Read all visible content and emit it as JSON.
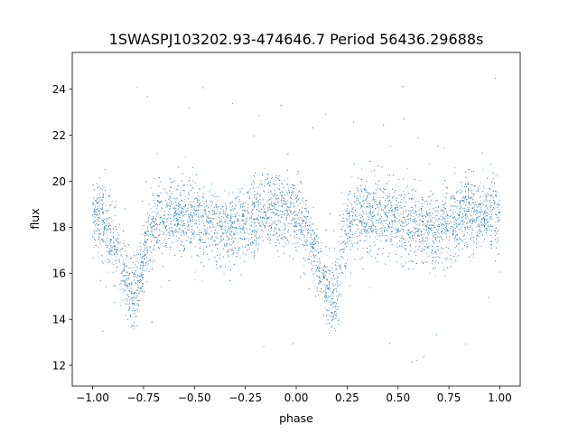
{
  "chart_data": {
    "type": "scatter",
    "title": "1SWASPJ103202.93-474646.7 Period 56436.29688s",
    "xlabel": "phase",
    "ylabel": "flux",
    "xlim": [
      -1.1,
      1.1
    ],
    "ylim": [
      11.1,
      25.6
    ],
    "xticks": [
      -1.0,
      -0.75,
      -0.5,
      -0.25,
      0.0,
      0.25,
      0.5,
      0.75,
      1.0
    ],
    "xtick_labels": [
      "−1.00",
      "−0.75",
      "−0.50",
      "−0.25",
      "0.00",
      "0.25",
      "0.50",
      "0.75",
      "1.00"
    ],
    "yticks": [
      12,
      14,
      16,
      18,
      20,
      22,
      24
    ],
    "ytick_labels": [
      "12",
      "14",
      "16",
      "18",
      "20",
      "22",
      "24"
    ],
    "grid": false,
    "legend": "none",
    "point_color": "#1f77b4",
    "series": [
      {
        "profile_x": [
          -1.0,
          -0.95,
          -0.9,
          -0.85,
          -0.82,
          -0.8,
          -0.78,
          -0.75,
          -0.7,
          -0.6,
          -0.5,
          -0.4,
          -0.3,
          -0.2,
          -0.1,
          0.0,
          0.05,
          0.1,
          0.15,
          0.18,
          0.2,
          0.22,
          0.25,
          0.3,
          0.4,
          0.5,
          0.6,
          0.7,
          0.8,
          0.9,
          1.0
        ],
        "profile_y": [
          18.5,
          18.3,
          17.6,
          16.2,
          15.2,
          14.9,
          15.4,
          16.7,
          18.2,
          18.6,
          18.4,
          18.0,
          17.8,
          18.4,
          18.7,
          18.6,
          17.9,
          16.5,
          15.3,
          14.9,
          15.3,
          16.6,
          18.0,
          18.6,
          18.6,
          18.4,
          18.0,
          17.8,
          18.4,
          18.6,
          18.5
        ],
        "scatter_sigma": 0.8
      }
    ]
  }
}
